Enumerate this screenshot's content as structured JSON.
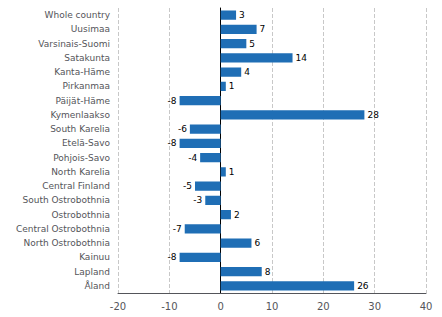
{
  "chart_data": {
    "type": "bar",
    "orientation": "horizontal",
    "categories": [
      "Whole country",
      "Uusimaa",
      "Varsinais-Suomi",
      "Satakunta",
      "Kanta-Häme",
      "Pirkanmaa",
      "Päijät-Häme",
      "Kymenlaakso",
      "South Karelia",
      "Etelä-Savo",
      "Pohjois-Savo",
      "North Karelia",
      "Central Finland",
      "South Ostrobothnia",
      "Ostrobothnia",
      "Central Ostrobothnia",
      "North Ostrobothnia",
      "Kainuu",
      "Lapland",
      "Åland"
    ],
    "values": [
      3,
      7,
      5,
      14,
      4,
      1,
      -8,
      28,
      -6,
      -8,
      -4,
      1,
      -5,
      -3,
      2,
      -7,
      6,
      -8,
      8,
      26
    ],
    "color": "#1f6eb5",
    "xlim": [
      -20,
      40
    ],
    "xticks": [
      -20,
      -10,
      0,
      10,
      20,
      30,
      40
    ],
    "grid": true,
    "data_labels": true
  }
}
